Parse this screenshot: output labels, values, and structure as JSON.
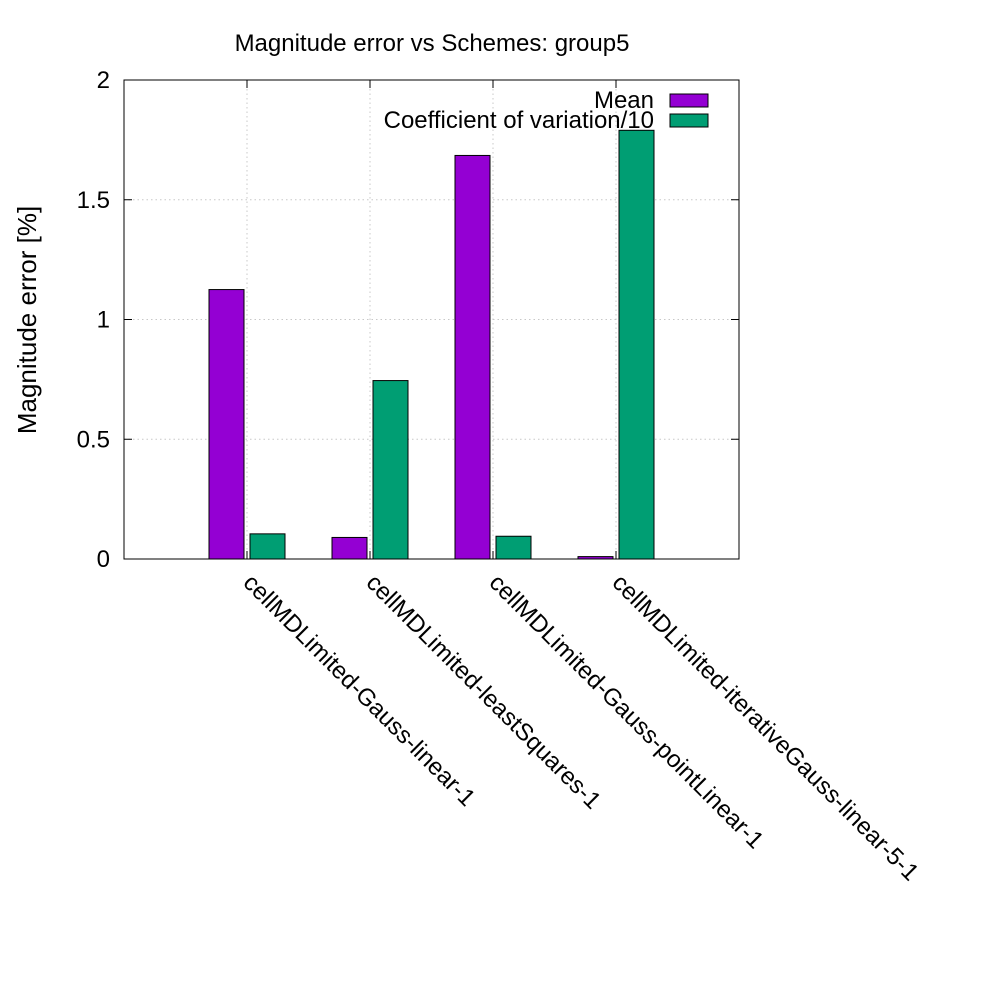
{
  "chart_data": {
    "type": "bar",
    "title": "Magnitude error vs Schemes: group5",
    "xlabel": "",
    "ylabel": "Magnitude error [%]",
    "ylim": [
      0,
      2
    ],
    "yticks": [
      0,
      0.5,
      1,
      1.5,
      2
    ],
    "ytick_labels": [
      "0",
      "0.5",
      "1",
      "1.5",
      "2"
    ],
    "grid": true,
    "legend_position": "top-right",
    "categories": [
      "cellMDLimited-Gauss-linear-1",
      "cellMDLimited-leastSquares-1",
      "cellMDLimited-Gauss-pointLinear-1",
      "cellMDLimited-iterativeGauss-linear-5-1"
    ],
    "series": [
      {
        "name": "Mean",
        "color": "#9400d3",
        "values": [
          1.125,
          0.09,
          1.685,
          0.01
        ]
      },
      {
        "name": "Coefficient of variation/10",
        "color": "#009e73",
        "values": [
          0.105,
          0.745,
          0.095,
          1.79
        ]
      }
    ]
  }
}
